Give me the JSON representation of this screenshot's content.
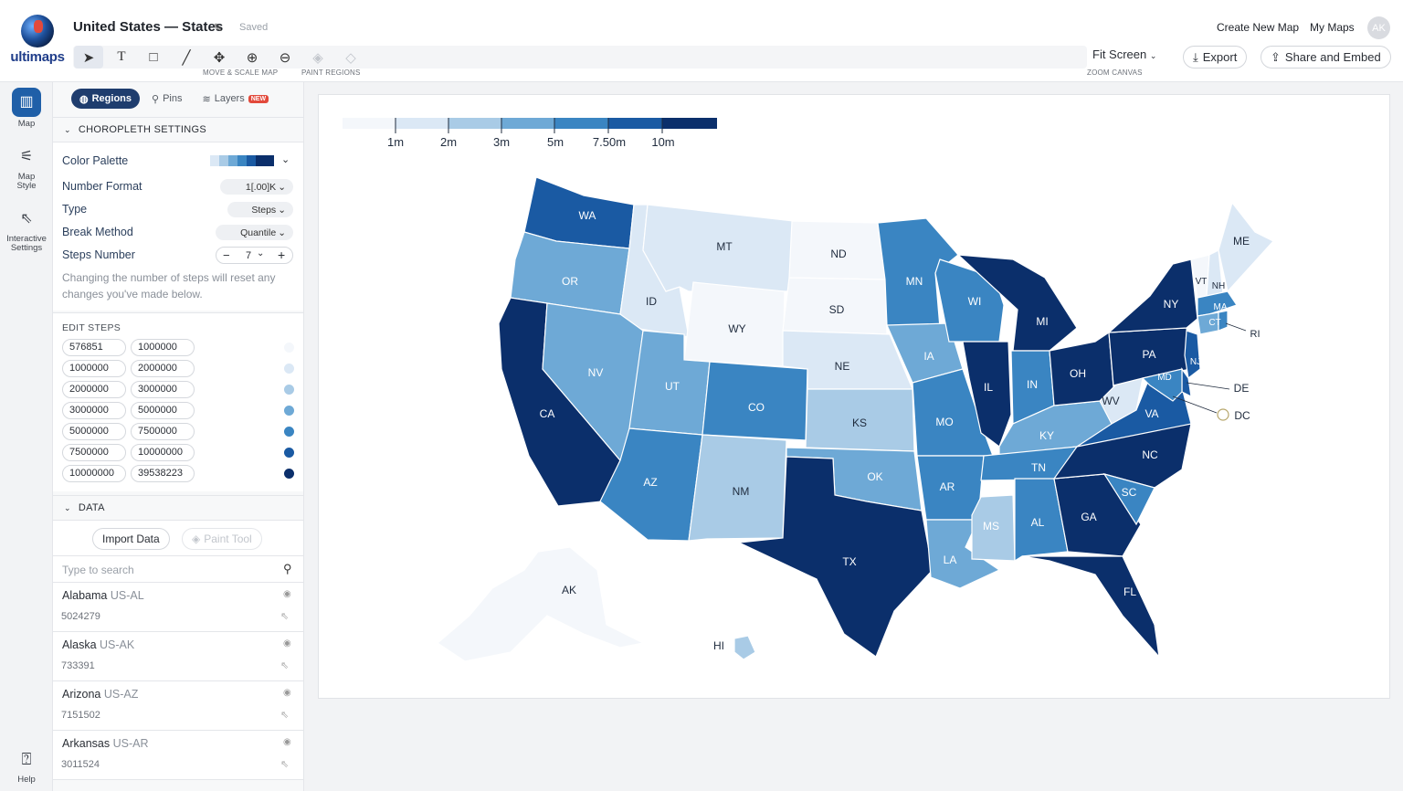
{
  "header": {
    "logo_text": "ultimaps",
    "title": "United States — States",
    "saved": "Saved",
    "create_new_map": "Create New Map",
    "my_maps": "My Maps",
    "avatar_initials": "AK",
    "fit_screen": "Fit Screen",
    "export": "Export",
    "share": "Share and Embed",
    "captions": {
      "move_scale": "MOVE & SCALE MAP",
      "paint_regions": "PAINT REGIONS",
      "zoom_canvas": "ZOOM CANVAS"
    },
    "tools": [
      "select-icon",
      "text-icon",
      "rectangle-icon",
      "line-icon",
      "move-icon",
      "zoom-in-icon",
      "zoom-out-icon",
      "paint-bucket-icon",
      "eraser-icon"
    ]
  },
  "rail": {
    "items": [
      {
        "label": "Map",
        "icon": "map-icon"
      },
      {
        "label": "Map Style",
        "icon": "sliders-icon"
      },
      {
        "label": "Interactive Settings",
        "icon": "cursor-click-icon"
      },
      {
        "label": "Help",
        "icon": "help-icon"
      }
    ]
  },
  "panel": {
    "tabs": [
      {
        "label": "Regions"
      },
      {
        "label": "Pins"
      },
      {
        "label": "Layers",
        "badge": "NEW"
      }
    ],
    "choropleth_title": "CHOROPLETH SETTINGS",
    "color_palette_label": "Color Palette",
    "number_format_label": "Number Format",
    "number_format_value": "1[.00]K",
    "type_label": "Type",
    "type_value": "Steps",
    "break_method_label": "Break Method",
    "break_method_value": "Quantile",
    "steps_number_label": "Steps Number",
    "steps_minus": "−",
    "steps_value": "7",
    "steps_plus": "+",
    "note": "Changing the number of steps will reset any changes you've made below.",
    "edit_steps_title": "EDIT STEPS",
    "steps": [
      {
        "from": "576851",
        "to": "1000000",
        "color": "#f4f7fb"
      },
      {
        "from": "1000000",
        "to": "2000000",
        "color": "#dbe8f5"
      },
      {
        "from": "2000000",
        "to": "3000000",
        "color": "#a9cbe6"
      },
      {
        "from": "3000000",
        "to": "5000000",
        "color": "#6ea9d6"
      },
      {
        "from": "5000000",
        "to": "7500000",
        "color": "#3a85c2"
      },
      {
        "from": "7500000",
        "to": "10000000",
        "color": "#1a5aa3"
      },
      {
        "from": "10000000",
        "to": "39538223",
        "color": "#0b2f6b"
      }
    ],
    "data_title": "DATA",
    "import_data": "Import Data",
    "paint_tool": "Paint Tool",
    "search_placeholder": "Type to search",
    "states": [
      {
        "name": "Alabama",
        "code": "US-AL",
        "value": "5024279"
      },
      {
        "name": "Alaska",
        "code": "US-AK",
        "value": "733391"
      },
      {
        "name": "Arizona",
        "code": "US-AZ",
        "value": "7151502"
      },
      {
        "name": "Arkansas",
        "code": "US-AR",
        "value": "3011524"
      }
    ]
  },
  "map": {
    "legend": {
      "labels": [
        "1m",
        "2m",
        "3m",
        "5m",
        "7.50m",
        "10m"
      ],
      "colors": [
        "#f4f7fb",
        "#dbe8f5",
        "#a9cbe6",
        "#6ea9d6",
        "#3a85c2",
        "#1a5aa3",
        "#0b2f6b"
      ]
    },
    "regions": {
      "WA": "WA",
      "OR": "OR",
      "CA": "CA",
      "ID": "ID",
      "NV": "NV",
      "MT": "MT",
      "WY": "WY",
      "UT": "UT",
      "AZ": "AZ",
      "CO": "CO",
      "NM": "NM",
      "ND": "ND",
      "SD": "SD",
      "NE": "NE",
      "KS": "KS",
      "OK": "OK",
      "TX": "TX",
      "MN": "MN",
      "IA": "IA",
      "MO": "MO",
      "AR": "AR",
      "LA": "LA",
      "WI": "WI",
      "IL": "IL",
      "MS": "MS",
      "MI": "MI",
      "IN": "IN",
      "KY": "KY",
      "TN": "TN",
      "AL": "AL",
      "GA": "GA",
      "FL": "FL",
      "OH": "OH",
      "WV": "WV",
      "VA": "VA",
      "NC": "NC",
      "SC": "SC",
      "PA": "PA",
      "NY": "NY",
      "VT": "VT",
      "NH": "NH",
      "ME": "ME",
      "MA": "MA",
      "CT": "CT",
      "RI": "RI",
      "NJ": "NJ",
      "DE": "DE",
      "MD": "MD",
      "DC": "DC",
      "AK": "AK",
      "HI": "HI"
    }
  }
}
